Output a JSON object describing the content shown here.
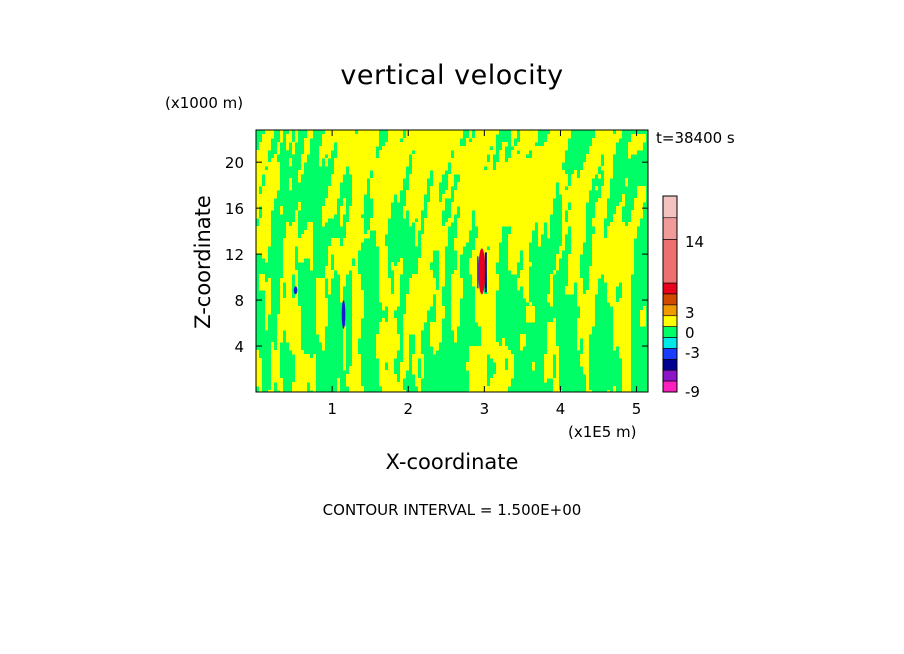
{
  "chart_data": {
    "type": "heatmap",
    "title": "vertical velocity",
    "xlabel": "X-coordinate",
    "ylabel": "Z-coordinate",
    "x_unit": "(x1E5 m)",
    "y_unit": "(x1000 m)",
    "time_label": "t=38400 s",
    "footer": "CONTOUR INTERVAL = 1.500E+00",
    "xlim": [
      0,
      5.15
    ],
    "ylim": [
      0,
      22.8
    ],
    "x_ticks": [
      1,
      2,
      3,
      4,
      5
    ],
    "x_tick_labels": [
      "1",
      "2",
      "3",
      "4",
      "5"
    ],
    "y_ticks": [
      4,
      8,
      12,
      16,
      20
    ],
    "y_tick_labels": [
      "4",
      "8",
      "12",
      "16",
      "20"
    ],
    "contour_interval": 1.5,
    "field_description": "Field dominated by two alternating bands (-1.5 to 0 and 0 to 1.5) forming vertical streaks; strong updraft/downdraft cores near x=3.0 (z 8-12.5) and weaker downdraft near x=1.15 (z 5-8).",
    "features": [
      {
        "x": 2.98,
        "z_range": [
          8.5,
          12.5
        ],
        "max": 9,
        "min": -4.5,
        "label": "strong updraft core"
      },
      {
        "x": 1.15,
        "z_range": [
          5.5,
          8.0
        ],
        "min": -4.5,
        "label": "downdraft"
      },
      {
        "x": 0.52,
        "z_range": [
          8.5,
          9.2
        ],
        "min": -3,
        "label": "weak downdraft"
      }
    ],
    "colorbar": {
      "ticks": [
        14,
        3,
        0,
        -3,
        -9
      ],
      "tick_labels": [
        "14",
        "3",
        "0",
        "-3",
        "-9"
      ],
      "levels": [
        {
          "color": "#f5c2c2",
          "from": 15,
          "to": 18
        },
        {
          "color": "#f09a9a",
          "from": 12,
          "to": 15
        },
        {
          "color": "#ee6f6f",
          "from": 6,
          "to": 12
        },
        {
          "color": "#e8001c",
          "from": 4.5,
          "to": 6
        },
        {
          "color": "#d24a00",
          "from": 3,
          "to": 4.5
        },
        {
          "color": "#ee9a00",
          "from": 1.5,
          "to": 3
        },
        {
          "color": "#ffff00",
          "from": 0,
          "to": 1.5
        },
        {
          "color": "#00ff66",
          "from": -1.5,
          "to": 0
        },
        {
          "color": "#00e8e8",
          "from": -3,
          "to": -1.5
        },
        {
          "color": "#1a3cff",
          "from": -4.5,
          "to": -3
        },
        {
          "color": "#000090",
          "from": -6,
          "to": -4.5
        },
        {
          "color": "#8a16c8",
          "from": -7.5,
          "to": -6
        },
        {
          "color": "#ff1fbf",
          "from": -9,
          "to": -7.5
        }
      ]
    },
    "colors": {
      "positive_band": "#ffff00",
      "negative_band": "#00ff66",
      "updraft": "#e8001c",
      "downdraft": "#1a1acc"
    }
  }
}
